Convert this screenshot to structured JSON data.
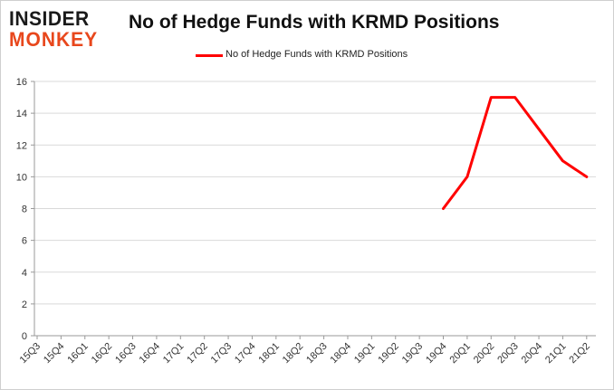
{
  "branding": {
    "logo_line1": "INSIDER",
    "logo_line2": "MONKEY"
  },
  "colors": {
    "series_line": "#ff0000",
    "logo_accent": "#e8471c",
    "grid": "#d9d9d9",
    "axis": "#999999"
  },
  "chart_data": {
    "type": "line",
    "title": "No of Hedge Funds with KRMD Positions",
    "xlabel": "",
    "ylabel": "",
    "ylim": [
      0,
      16
    ],
    "yticks": [
      0,
      2,
      4,
      6,
      8,
      10,
      12,
      14,
      16
    ],
    "grid": true,
    "legend": "top-center",
    "categories": [
      "15Q3",
      "15Q4",
      "16Q1",
      "16Q2",
      "16Q3",
      "16Q4",
      "17Q1",
      "17Q2",
      "17Q3",
      "17Q4",
      "18Q1",
      "18Q2",
      "18Q3",
      "18Q4",
      "19Q1",
      "19Q2",
      "19Q3",
      "19Q4",
      "20Q1",
      "20Q2",
      "20Q3",
      "20Q4",
      "21Q1",
      "21Q2"
    ],
    "series": [
      {
        "name": "No of Hedge Funds with KRMD Positions",
        "values": [
          null,
          null,
          null,
          null,
          null,
          null,
          null,
          null,
          null,
          null,
          null,
          null,
          null,
          null,
          null,
          null,
          null,
          8,
          10,
          15,
          15,
          13,
          11,
          10
        ]
      }
    ]
  }
}
